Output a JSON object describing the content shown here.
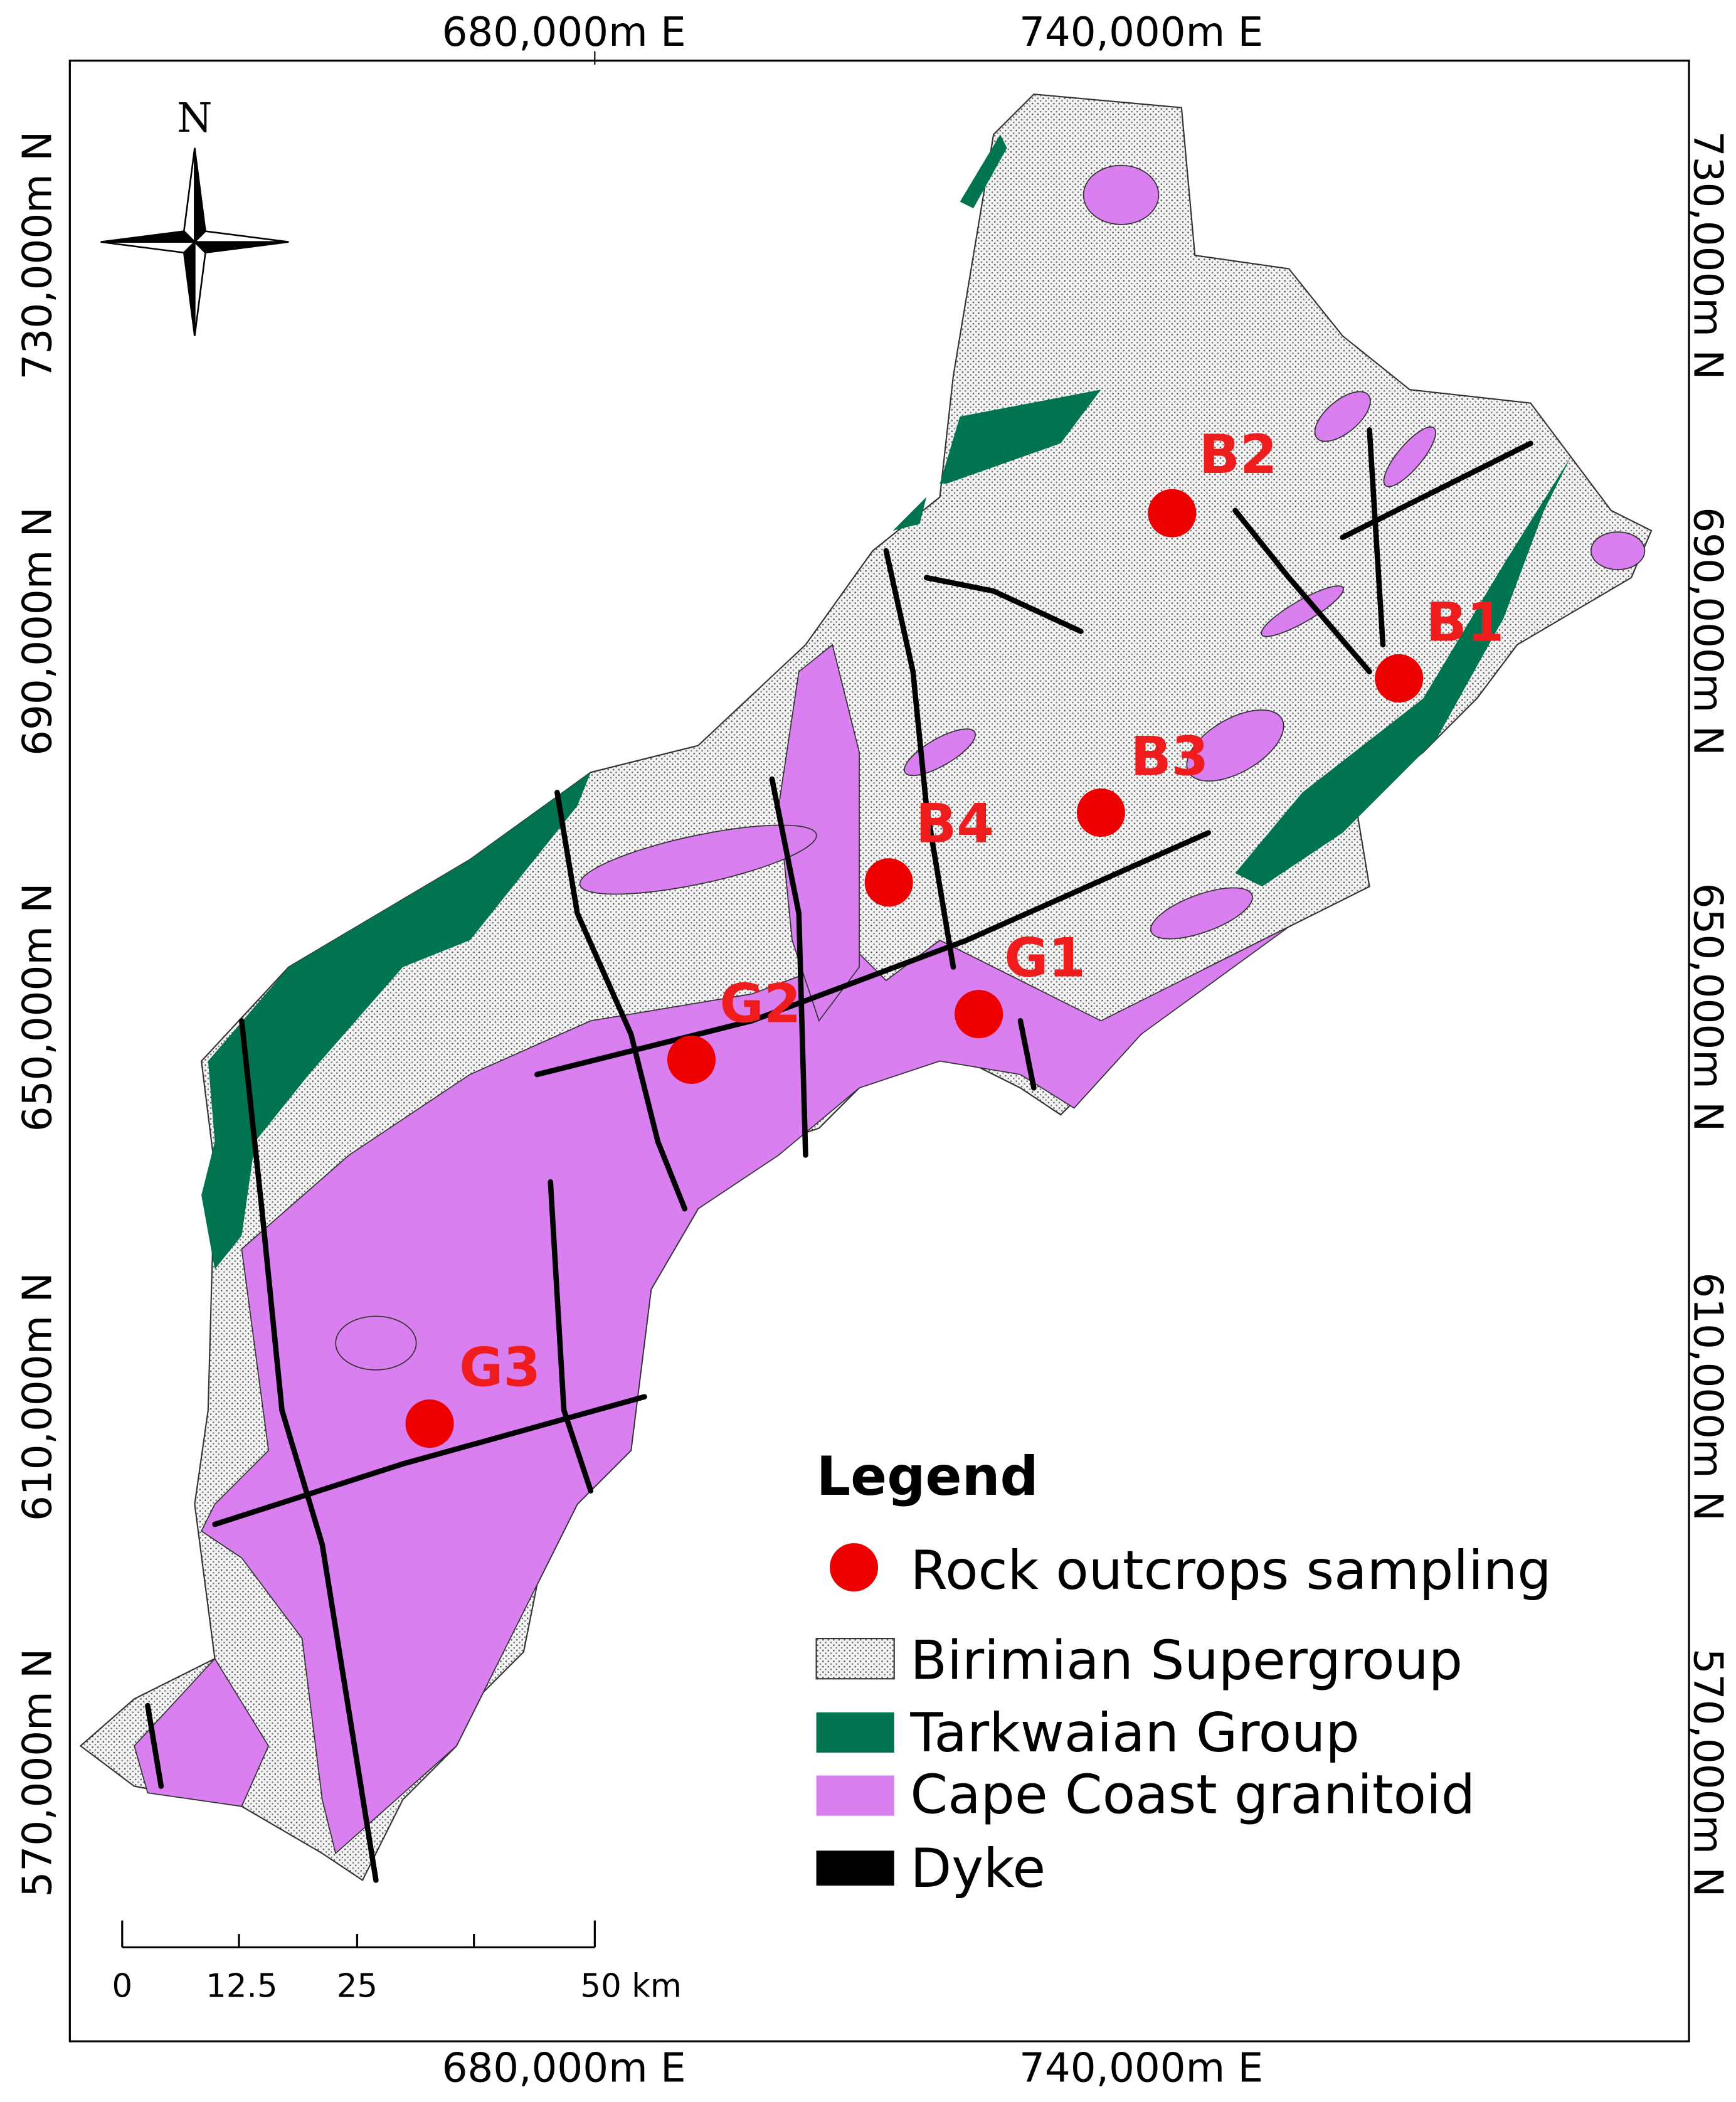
{
  "coordinates": {
    "top": [
      "680,000m E",
      "740,000m E"
    ],
    "bottom": [
      "680,000m E",
      "740,000m E"
    ],
    "left": [
      "730,000m N",
      "690,000m N",
      "650,000m N",
      "610,000m N",
      "570,000m N"
    ],
    "right": [
      "730,000m N",
      "690,000m N",
      "650,000m N",
      "610,000m N",
      "570,000m N"
    ]
  },
  "north_arrow": "N",
  "scale_bar": [
    "0",
    "12.5",
    "25",
    "50 km"
  ],
  "samples": [
    "B2",
    "B1",
    "B3",
    "B4",
    "G1",
    "G2",
    "G3"
  ],
  "legend": {
    "title": "Legend",
    "items": [
      "Rock outcrops sampling",
      "Birimian Supergroup",
      "Tarkwaian Group",
      "Cape Coast granitoid",
      "Dyke"
    ]
  }
}
